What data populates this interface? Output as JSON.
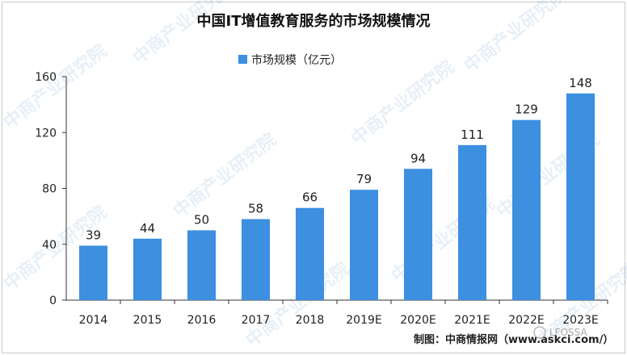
{
  "chart_data": {
    "type": "bar",
    "title": "中国IT增值教育服务的市场规模情况",
    "legend": {
      "label": "市场规模（亿元）",
      "placement": "top-left"
    },
    "categories": [
      "2014",
      "2015",
      "2016",
      "2017",
      "2018",
      "2019E",
      "2020E",
      "2021E",
      "2022E",
      "2023E"
    ],
    "values": [
      39,
      44,
      50,
      58,
      66,
      79,
      94,
      111,
      129,
      148
    ],
    "series": [
      {
        "name": "市场规模（亿元）",
        "values": [
          39,
          44,
          50,
          58,
          66,
          79,
          94,
          111,
          129,
          148
        ]
      }
    ],
    "yticks": [
      "0",
      "40",
      "80",
      "120",
      "160"
    ],
    "ylim": [
      0,
      160
    ],
    "grid": false,
    "bar_color": "#3d8fe0",
    "source": "制图：中商情报网（www.askci.com/）"
  },
  "watermark": "中商产业研究院",
  "signature": "LFOSSA"
}
